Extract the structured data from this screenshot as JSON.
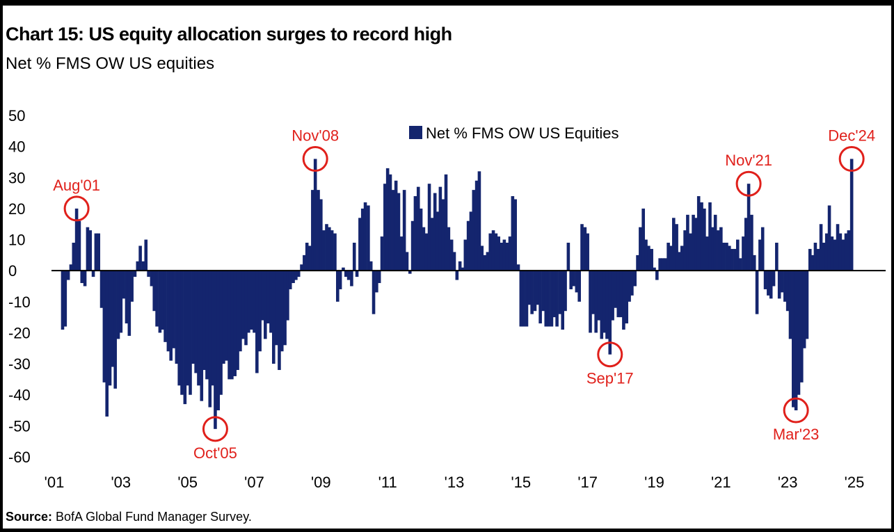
{
  "header": {
    "title": "Chart 15: US equity allocation surges to record high",
    "subtitle": "Net % FMS OW US equities"
  },
  "source": {
    "label": "Source:",
    "text": " BofA Global Fund Manager Survey."
  },
  "colors": {
    "bar": "#14256e",
    "annotation": "#e0201b",
    "axis": "#000000"
  },
  "chart_data": {
    "type": "bar",
    "title": "Chart 15: US equity allocation surges to record high",
    "ylabel": "Net % FMS OW US equities",
    "ylim": [
      -60,
      50
    ],
    "yticks": [
      50,
      40,
      30,
      20,
      10,
      0,
      -10,
      -20,
      -30,
      -40,
      -50,
      -60
    ],
    "xrange": [
      2001.0,
      2025.3
    ],
    "xticks": [
      {
        "label": "'01",
        "x": 2001
      },
      {
        "label": "'03",
        "x": 2003
      },
      {
        "label": "'05",
        "x": 2005
      },
      {
        "label": "'07",
        "x": 2007
      },
      {
        "label": "'09",
        "x": 2009
      },
      {
        "label": "'11",
        "x": 2011
      },
      {
        "label": "'13",
        "x": 2013
      },
      {
        "label": "'15",
        "x": 2015
      },
      {
        "label": "'17",
        "x": 2017
      },
      {
        "label": "'19",
        "x": 2019
      },
      {
        "label": "'21",
        "x": 2021
      },
      {
        "label": "'23",
        "x": 2023
      },
      {
        "label": "'25",
        "x": 2025
      }
    ],
    "legend": {
      "label": "Net % FMS OW US Equities",
      "position": "top-center"
    },
    "grid": false,
    "series": [
      {
        "name": "Net % FMS OW US Equities",
        "points": [
          [
            2001.25,
            -19
          ],
          [
            2001.33,
            -18
          ],
          [
            2001.42,
            -3
          ],
          [
            2001.5,
            2
          ],
          [
            2001.58,
            9
          ],
          [
            2001.67,
            20
          ],
          [
            2001.75,
            16
          ],
          [
            2001.83,
            -4
          ],
          [
            2001.92,
            -5
          ],
          [
            2002.0,
            14
          ],
          [
            2002.08,
            13
          ],
          [
            2002.17,
            -2
          ],
          [
            2002.25,
            12
          ],
          [
            2002.33,
            12
          ],
          [
            2002.42,
            -12
          ],
          [
            2002.5,
            -36
          ],
          [
            2002.58,
            -47
          ],
          [
            2002.67,
            -37
          ],
          [
            2002.75,
            -31
          ],
          [
            2002.83,
            -38
          ],
          [
            2002.92,
            -22
          ],
          [
            2003.0,
            -20
          ],
          [
            2003.08,
            -9
          ],
          [
            2003.17,
            -17
          ],
          [
            2003.25,
            -21
          ],
          [
            2003.33,
            -10
          ],
          [
            2003.42,
            -2
          ],
          [
            2003.5,
            3
          ],
          [
            2003.58,
            8
          ],
          [
            2003.67,
            3
          ],
          [
            2003.75,
            10
          ],
          [
            2003.83,
            -2
          ],
          [
            2003.92,
            -5
          ],
          [
            2004.0,
            -13
          ],
          [
            2004.08,
            -18
          ],
          [
            2004.17,
            -20
          ],
          [
            2004.25,
            -19
          ],
          [
            2004.33,
            -23
          ],
          [
            2004.42,
            -26
          ],
          [
            2004.5,
            -29
          ],
          [
            2004.58,
            -25
          ],
          [
            2004.67,
            -30
          ],
          [
            2004.75,
            -37
          ],
          [
            2004.83,
            -40
          ],
          [
            2004.92,
            -43
          ],
          [
            2005.0,
            -37
          ],
          [
            2005.08,
            -40
          ],
          [
            2005.17,
            -30
          ],
          [
            2005.25,
            -33
          ],
          [
            2005.33,
            -37
          ],
          [
            2005.42,
            -42
          ],
          [
            2005.5,
            -32
          ],
          [
            2005.58,
            -35
          ],
          [
            2005.67,
            -44
          ],
          [
            2005.75,
            -37
          ],
          [
            2005.83,
            -51
          ],
          [
            2005.92,
            -45
          ],
          [
            2006.0,
            -40
          ],
          [
            2006.08,
            -30
          ],
          [
            2006.17,
            -29
          ],
          [
            2006.25,
            -35
          ],
          [
            2006.33,
            -35
          ],
          [
            2006.42,
            -34
          ],
          [
            2006.5,
            -32
          ],
          [
            2006.58,
            -26
          ],
          [
            2006.67,
            -22
          ],
          [
            2006.75,
            -24
          ],
          [
            2006.83,
            -20
          ],
          [
            2006.92,
            -19
          ],
          [
            2007.0,
            -20
          ],
          [
            2007.08,
            -33
          ],
          [
            2007.17,
            -26
          ],
          [
            2007.25,
            -16
          ],
          [
            2007.33,
            -22
          ],
          [
            2007.42,
            -17
          ],
          [
            2007.5,
            -20
          ],
          [
            2007.58,
            -30
          ],
          [
            2007.67,
            -24
          ],
          [
            2007.75,
            -32
          ],
          [
            2007.83,
            -26
          ],
          [
            2007.92,
            -24
          ],
          [
            2008.0,
            -16
          ],
          [
            2008.08,
            -6
          ],
          [
            2008.17,
            -4
          ],
          [
            2008.25,
            -3
          ],
          [
            2008.33,
            -2
          ],
          [
            2008.42,
            2
          ],
          [
            2008.5,
            5
          ],
          [
            2008.58,
            9
          ],
          [
            2008.67,
            8
          ],
          [
            2008.75,
            26
          ],
          [
            2008.83,
            36
          ],
          [
            2008.92,
            26
          ],
          [
            2009.0,
            23
          ],
          [
            2009.08,
            13
          ],
          [
            2009.17,
            15
          ],
          [
            2009.25,
            14
          ],
          [
            2009.33,
            13
          ],
          [
            2009.42,
            12
          ],
          [
            2009.5,
            -10
          ],
          [
            2009.58,
            -6
          ],
          [
            2009.67,
            1
          ],
          [
            2009.75,
            -2
          ],
          [
            2009.83,
            -3
          ],
          [
            2009.92,
            -5
          ],
          [
            2010.0,
            9
          ],
          [
            2010.08,
            -2
          ],
          [
            2010.17,
            17
          ],
          [
            2010.25,
            20
          ],
          [
            2010.33,
            22
          ],
          [
            2010.42,
            21
          ],
          [
            2010.5,
            3
          ],
          [
            2010.58,
            -14
          ],
          [
            2010.67,
            -7
          ],
          [
            2010.75,
            -4
          ],
          [
            2010.83,
            11
          ],
          [
            2010.92,
            28
          ],
          [
            2011.0,
            33
          ],
          [
            2011.08,
            31
          ],
          [
            2011.17,
            26
          ],
          [
            2011.25,
            29
          ],
          [
            2011.33,
            25
          ],
          [
            2011.42,
            11
          ],
          [
            2011.5,
            26
          ],
          [
            2011.58,
            6
          ],
          [
            2011.67,
            -1
          ],
          [
            2011.75,
            16
          ],
          [
            2011.83,
            24
          ],
          [
            2011.92,
            27
          ],
          [
            2012.0,
            20
          ],
          [
            2012.08,
            14
          ],
          [
            2012.17,
            12
          ],
          [
            2012.25,
            28
          ],
          [
            2012.33,
            17
          ],
          [
            2012.42,
            25
          ],
          [
            2012.5,
            19
          ],
          [
            2012.58,
            27
          ],
          [
            2012.67,
            23
          ],
          [
            2012.75,
            31
          ],
          [
            2012.83,
            14
          ],
          [
            2012.92,
            10
          ],
          [
            2013.0,
            6
          ],
          [
            2013.08,
            -3
          ],
          [
            2013.17,
            3
          ],
          [
            2013.25,
            1
          ],
          [
            2013.33,
            10
          ],
          [
            2013.42,
            16
          ],
          [
            2013.5,
            19
          ],
          [
            2013.58,
            26
          ],
          [
            2013.67,
            29
          ],
          [
            2013.75,
            32
          ],
          [
            2013.83,
            8
          ],
          [
            2013.92,
            5
          ],
          [
            2014.0,
            6
          ],
          [
            2014.08,
            12
          ],
          [
            2014.17,
            13
          ],
          [
            2014.25,
            12
          ],
          [
            2014.33,
            11
          ],
          [
            2014.42,
            9
          ],
          [
            2014.5,
            10
          ],
          [
            2014.58,
            9
          ],
          [
            2014.67,
            11
          ],
          [
            2014.75,
            24
          ],
          [
            2014.83,
            23
          ],
          [
            2014.92,
            2
          ],
          [
            2015.0,
            -18
          ],
          [
            2015.08,
            -18
          ],
          [
            2015.17,
            -18
          ],
          [
            2015.25,
            -11
          ],
          [
            2015.33,
            -14
          ],
          [
            2015.42,
            -13
          ],
          [
            2015.5,
            -11
          ],
          [
            2015.58,
            -17
          ],
          [
            2015.67,
            -13
          ],
          [
            2015.75,
            -18
          ],
          [
            2015.83,
            -18
          ],
          [
            2015.92,
            -18
          ],
          [
            2016.0,
            -15
          ],
          [
            2016.08,
            -18
          ],
          [
            2016.17,
            -14
          ],
          [
            2016.25,
            -19
          ],
          [
            2016.33,
            -13
          ],
          [
            2016.42,
            9
          ],
          [
            2016.5,
            -6
          ],
          [
            2016.58,
            -5
          ],
          [
            2016.67,
            -7
          ],
          [
            2016.75,
            -10
          ],
          [
            2016.83,
            15
          ],
          [
            2016.92,
            14
          ],
          [
            2017.0,
            12
          ],
          [
            2017.08,
            -20
          ],
          [
            2017.17,
            -14
          ],
          [
            2017.25,
            -20
          ],
          [
            2017.33,
            -16
          ],
          [
            2017.42,
            -22
          ],
          [
            2017.5,
            -20
          ],
          [
            2017.58,
            -22
          ],
          [
            2017.67,
            -27
          ],
          [
            2017.75,
            -16
          ],
          [
            2017.83,
            -12
          ],
          [
            2017.92,
            -15
          ],
          [
            2018.0,
            -15
          ],
          [
            2018.08,
            -19
          ],
          [
            2018.17,
            -17
          ],
          [
            2018.25,
            -10
          ],
          [
            2018.33,
            -8
          ],
          [
            2018.42,
            -5
          ],
          [
            2018.5,
            5
          ],
          [
            2018.58,
            14
          ],
          [
            2018.67,
            20
          ],
          [
            2018.75,
            10
          ],
          [
            2018.83,
            8
          ],
          [
            2018.92,
            7
          ],
          [
            2019.0,
            1
          ],
          [
            2019.08,
            -3
          ],
          [
            2019.17,
            4
          ],
          [
            2019.25,
            4
          ],
          [
            2019.33,
            4
          ],
          [
            2019.42,
            9
          ],
          [
            2019.5,
            8
          ],
          [
            2019.58,
            17
          ],
          [
            2019.67,
            15
          ],
          [
            2019.75,
            6
          ],
          [
            2019.83,
            8
          ],
          [
            2019.92,
            13
          ],
          [
            2020.0,
            18
          ],
          [
            2020.08,
            12
          ],
          [
            2020.17,
            18
          ],
          [
            2020.25,
            17
          ],
          [
            2020.33,
            24
          ],
          [
            2020.42,
            22
          ],
          [
            2020.5,
            20
          ],
          [
            2020.58,
            11
          ],
          [
            2020.67,
            22
          ],
          [
            2020.75,
            14
          ],
          [
            2020.83,
            18
          ],
          [
            2020.92,
            13
          ],
          [
            2021.0,
            14
          ],
          [
            2021.08,
            9
          ],
          [
            2021.17,
            9
          ],
          [
            2021.25,
            8
          ],
          [
            2021.33,
            7
          ],
          [
            2021.42,
            7
          ],
          [
            2021.5,
            10
          ],
          [
            2021.58,
            4
          ],
          [
            2021.67,
            11
          ],
          [
            2021.75,
            17
          ],
          [
            2021.83,
            28
          ],
          [
            2021.92,
            18
          ],
          [
            2022.0,
            5
          ],
          [
            2022.08,
            -14
          ],
          [
            2022.17,
            10
          ],
          [
            2022.25,
            14
          ],
          [
            2022.33,
            -6
          ],
          [
            2022.42,
            -8
          ],
          [
            2022.5,
            -9
          ],
          [
            2022.58,
            -5
          ],
          [
            2022.67,
            9
          ],
          [
            2022.75,
            -9
          ],
          [
            2022.83,
            -7
          ],
          [
            2022.92,
            -10
          ],
          [
            2023.0,
            -13
          ],
          [
            2023.08,
            -22
          ],
          [
            2023.17,
            -44
          ],
          [
            2023.25,
            -45
          ],
          [
            2023.33,
            -40
          ],
          [
            2023.42,
            -36
          ],
          [
            2023.5,
            -25
          ],
          [
            2023.58,
            -22
          ],
          [
            2023.67,
            7
          ],
          [
            2023.75,
            5
          ],
          [
            2023.83,
            9
          ],
          [
            2023.92,
            7
          ],
          [
            2024.0,
            15
          ],
          [
            2024.08,
            9
          ],
          [
            2024.17,
            12
          ],
          [
            2024.25,
            21
          ],
          [
            2024.33,
            11
          ],
          [
            2024.42,
            10
          ],
          [
            2024.5,
            15
          ],
          [
            2024.58,
            12
          ],
          [
            2024.67,
            10
          ],
          [
            2024.75,
            12
          ],
          [
            2024.83,
            13
          ],
          [
            2024.92,
            36
          ]
        ]
      }
    ],
    "annotations": [
      {
        "label": "Aug'01",
        "x": 2001.67,
        "y": 20,
        "label_side": "above"
      },
      {
        "label": "Oct'05",
        "x": 2005.83,
        "y": -51,
        "label_side": "below"
      },
      {
        "label": "Nov'08",
        "x": 2008.83,
        "y": 36,
        "label_side": "above"
      },
      {
        "label": "Sep'17",
        "x": 2017.67,
        "y": -27,
        "label_side": "below"
      },
      {
        "label": "Nov'21",
        "x": 2021.83,
        "y": 28,
        "label_side": "above"
      },
      {
        "label": "Mar'23",
        "x": 2023.25,
        "y": -45,
        "label_side": "below"
      },
      {
        "label": "Dec'24",
        "x": 2024.92,
        "y": 36,
        "label_side": "above"
      }
    ]
  }
}
